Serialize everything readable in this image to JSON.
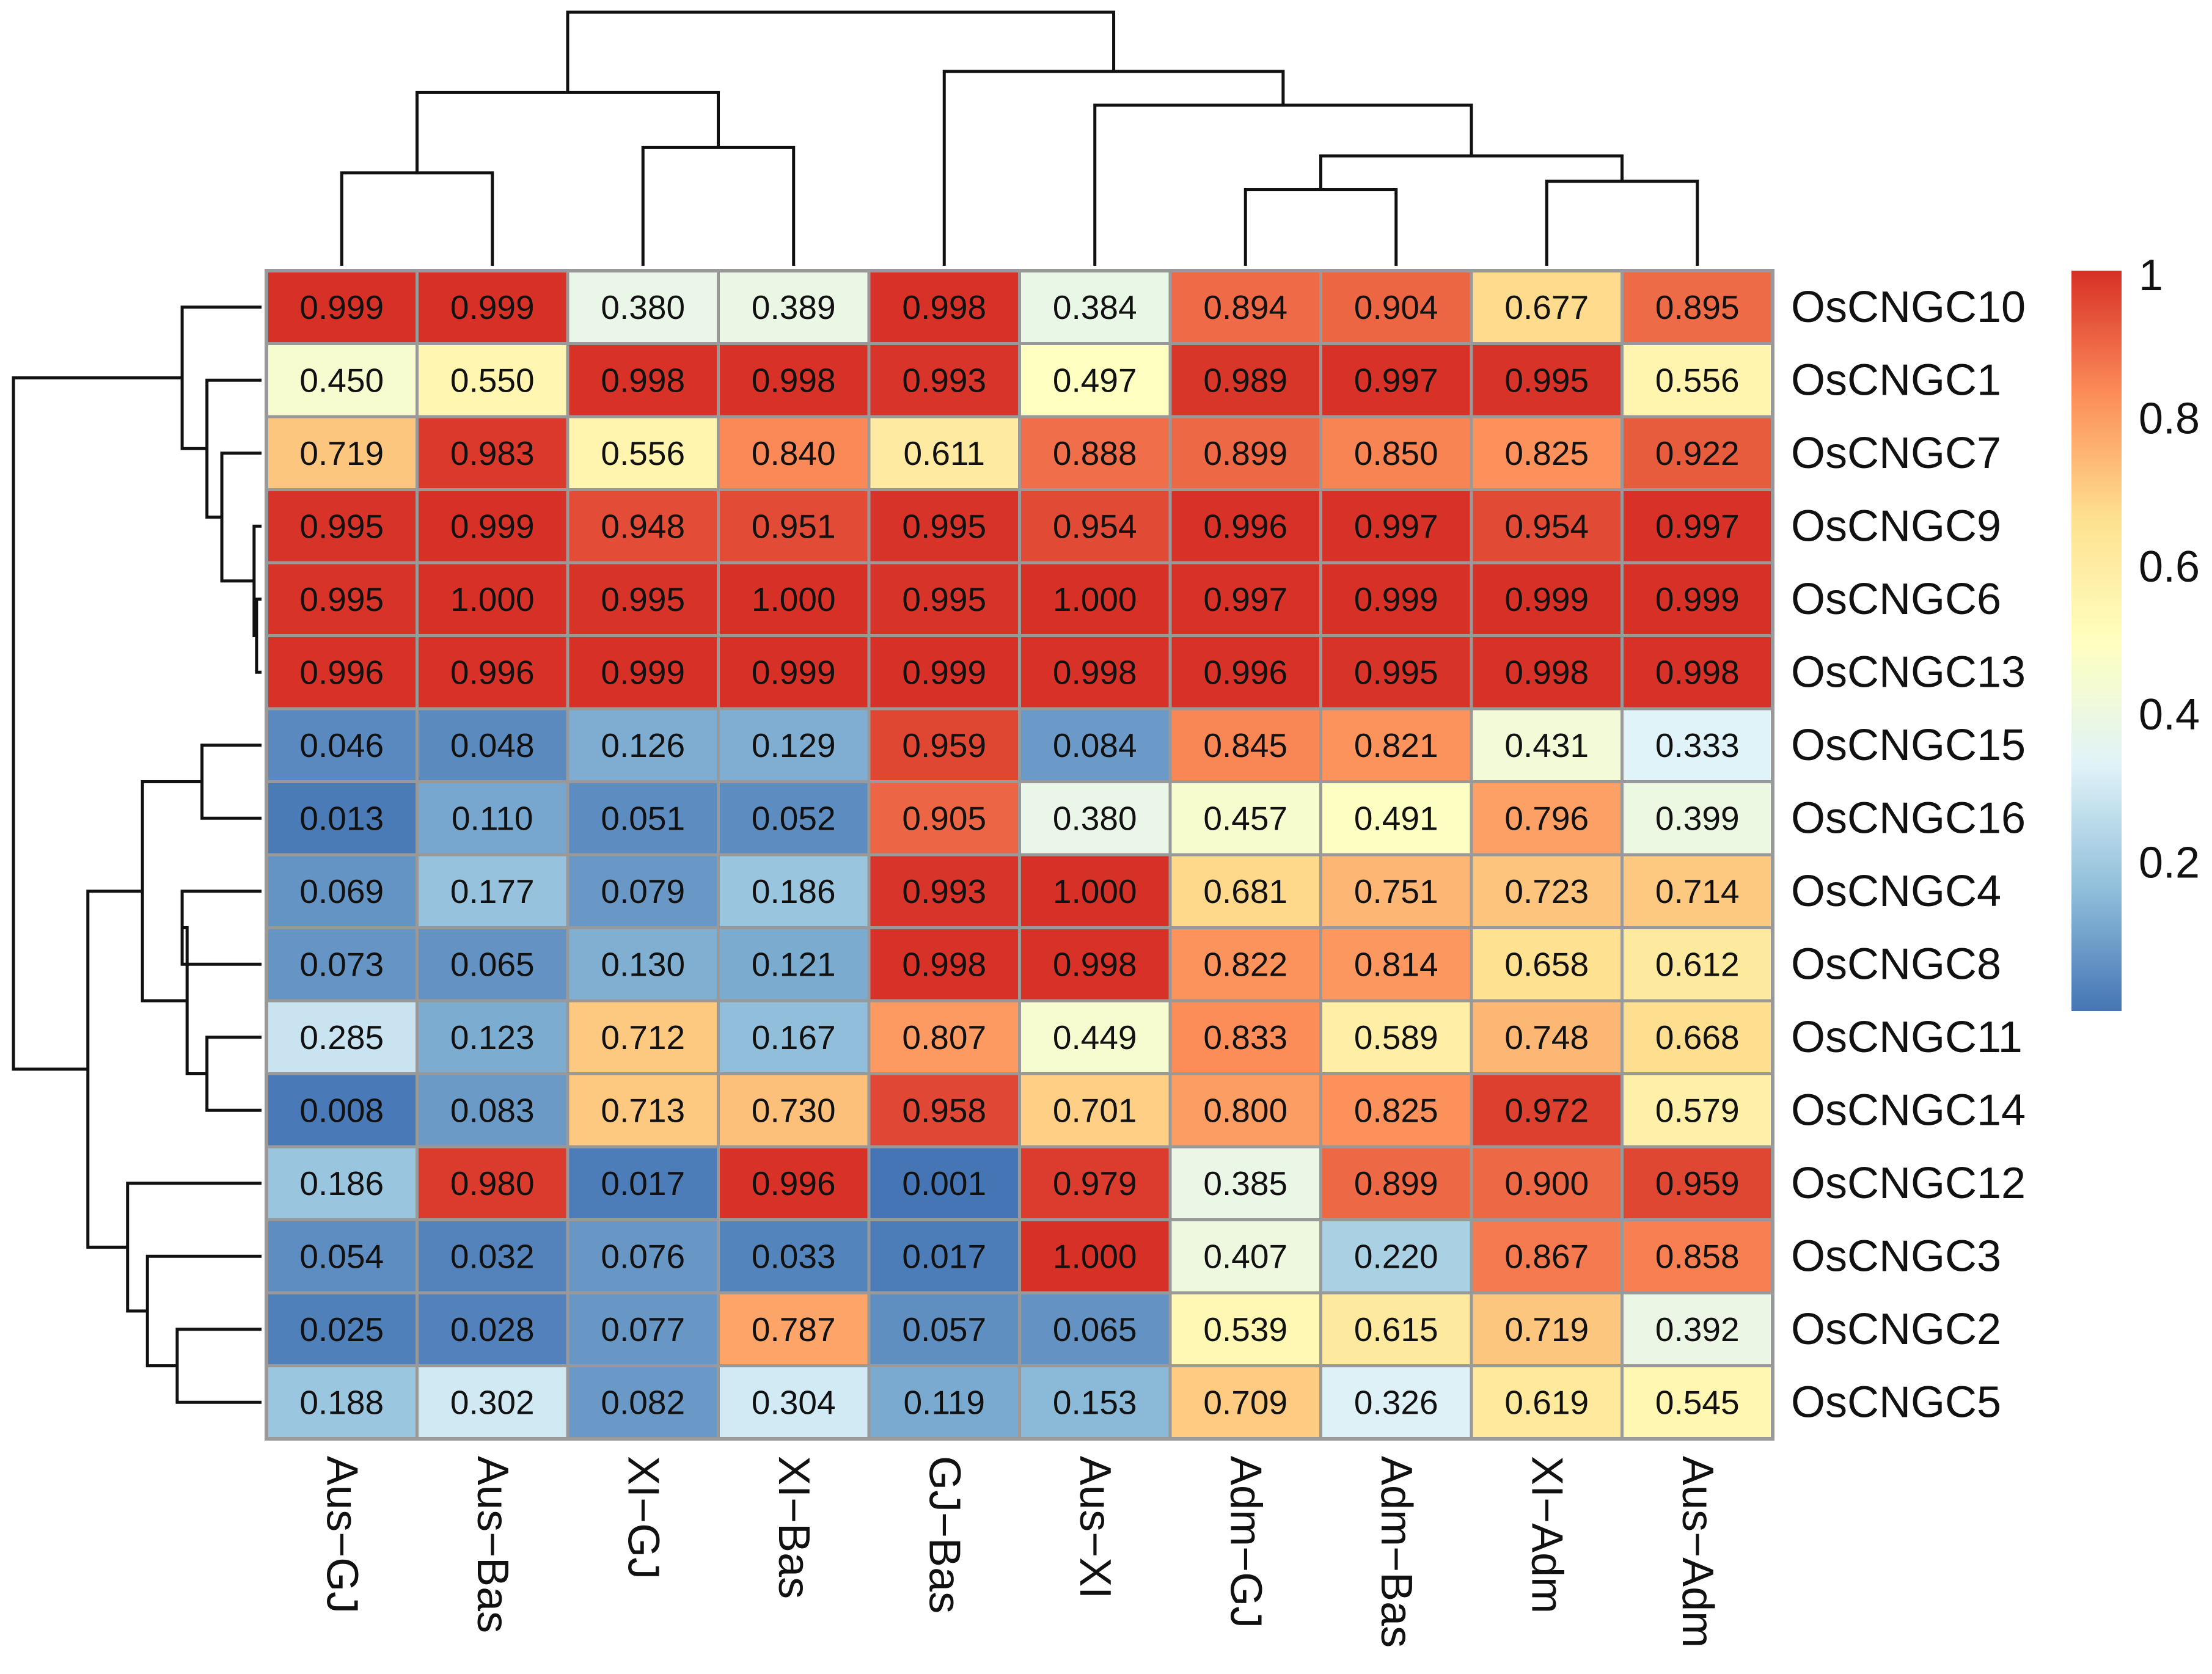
{
  "chart_data": {
    "type": "heatmap",
    "title": "",
    "columns": [
      "Aus−GJ",
      "Aus−Bas",
      "XI−GJ",
      "XI−Bas",
      "GJ−Bas",
      "Aus−XI",
      "Adm−GJ",
      "Adm−Bas",
      "XI−Adm",
      "Aus−Adm"
    ],
    "rows": [
      "OsCNGC10",
      "OsCNGC1",
      "OsCNGC7",
      "OsCNGC9",
      "OsCNGC6",
      "OsCNGC13",
      "OsCNGC15",
      "OsCNGC16",
      "OsCNGC4",
      "OsCNGC8",
      "OsCNGC11",
      "OsCNGC14",
      "OsCNGC12",
      "OsCNGC3",
      "OsCNGC2",
      "OsCNGC5"
    ],
    "values": [
      [
        "0.999",
        "0.999",
        "0.380",
        "0.389",
        "0.998",
        "0.384",
        "0.894",
        "0.904",
        "0.677",
        "0.895"
      ],
      [
        "0.450",
        "0.550",
        "0.998",
        "0.998",
        "0.993",
        "0.497",
        "0.989",
        "0.997",
        "0.995",
        "0.556"
      ],
      [
        "0.719",
        "0.983",
        "0.556",
        "0.840",
        "0.611",
        "0.888",
        "0.899",
        "0.850",
        "0.825",
        "0.922"
      ],
      [
        "0.995",
        "0.999",
        "0.948",
        "0.951",
        "0.995",
        "0.954",
        "0.996",
        "0.997",
        "0.954",
        "0.997"
      ],
      [
        "0.995",
        "1.000",
        "0.995",
        "1.000",
        "0.995",
        "1.000",
        "0.997",
        "0.999",
        "0.999",
        "0.999"
      ],
      [
        "0.996",
        "0.996",
        "0.999",
        "0.999",
        "0.999",
        "0.998",
        "0.996",
        "0.995",
        "0.998",
        "0.998"
      ],
      [
        "0.046",
        "0.048",
        "0.126",
        "0.129",
        "0.959",
        "0.084",
        "0.845",
        "0.821",
        "0.431",
        "0.333"
      ],
      [
        "0.013",
        "0.110",
        "0.051",
        "0.052",
        "0.905",
        "0.380",
        "0.457",
        "0.491",
        "0.796",
        "0.399"
      ],
      [
        "0.069",
        "0.177",
        "0.079",
        "0.186",
        "0.993",
        "1.000",
        "0.681",
        "0.751",
        "0.723",
        "0.714"
      ],
      [
        "0.073",
        "0.065",
        "0.130",
        "0.121",
        "0.998",
        "0.998",
        "0.822",
        "0.814",
        "0.658",
        "0.612"
      ],
      [
        "0.285",
        "0.123",
        "0.712",
        "0.167",
        "0.807",
        "0.449",
        "0.833",
        "0.589",
        "0.748",
        "0.668"
      ],
      [
        "0.008",
        "0.083",
        "0.713",
        "0.730",
        "0.958",
        "0.701",
        "0.800",
        "0.825",
        "0.972",
        "0.579"
      ],
      [
        "0.186",
        "0.980",
        "0.017",
        "0.996",
        "0.001",
        "0.979",
        "0.385",
        "0.899",
        "0.900",
        "0.959"
      ],
      [
        "0.054",
        "0.032",
        "0.076",
        "0.033",
        "0.017",
        "1.000",
        "0.407",
        "0.220",
        "0.867",
        "0.858"
      ],
      [
        "0.025",
        "0.028",
        "0.077",
        "0.787",
        "0.057",
        "0.065",
        "0.539",
        "0.615",
        "0.719",
        "0.392"
      ],
      [
        "0.188",
        "0.302",
        "0.082",
        "0.304",
        "0.119",
        "0.153",
        "0.709",
        "0.326",
        "0.619",
        "0.545"
      ]
    ],
    "colorbar": {
      "range": [
        0,
        1
      ],
      "ticks": [
        0.2,
        0.4,
        0.6,
        0.8,
        1
      ],
      "tick_labels": [
        "0.2",
        "0.4",
        "0.6",
        "0.8",
        "1"
      ],
      "colors": [
        "#4575b4",
        "#91bfdb",
        "#e0f3f8",
        "#ffffbf",
        "#fee090",
        "#fc8d59",
        "#d73027"
      ]
    },
    "dendrogram_columns": {
      "merges": [
        [
          0,
          1,
          0.22
        ],
        [
          2,
          3,
          0.28
        ],
        [
          6,
          7,
          0.18
        ],
        [
          8,
          9,
          0.2
        ],
        [
          -3,
          -4,
          0.26
        ],
        [
          5,
          -5,
          0.38
        ],
        [
          -1,
          -2,
          0.41
        ],
        [
          4,
          -6,
          0.46
        ],
        [
          -7,
          -8,
          0.6
        ]
      ]
    },
    "dendrogram_rows": {
      "merges": [
        [
          4,
          5,
          0.01
        ],
        [
          3,
          -1,
          0.015
        ],
        [
          2,
          -2,
          0.08
        ],
        [
          1,
          -3,
          0.11
        ],
        [
          0,
          -4,
          0.16
        ],
        [
          8,
          9,
          0.16
        ],
        [
          6,
          7,
          0.12
        ],
        [
          10,
          11,
          0.11
        ],
        [
          -6,
          -8,
          0.15
        ],
        [
          -7,
          -9,
          0.24
        ],
        [
          14,
          15,
          0.17
        ],
        [
          13,
          -11,
          0.23
        ],
        [
          12,
          -12,
          0.27
        ],
        [
          -10,
          -13,
          0.35
        ],
        [
          -5,
          -14,
          0.5
        ]
      ]
    },
    "cell_border_color": "#999999"
  }
}
